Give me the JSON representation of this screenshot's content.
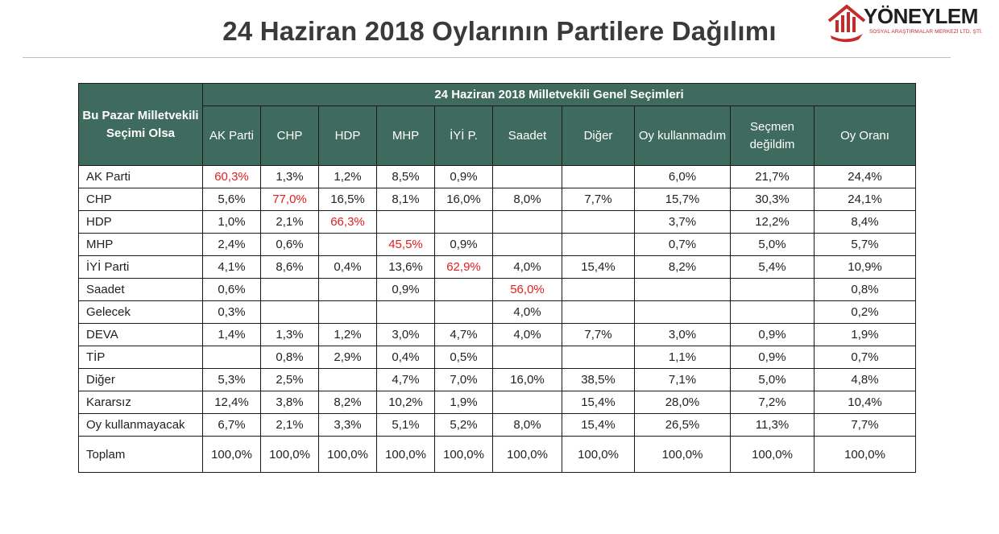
{
  "title": "24 Haziran 2018 Oylarının Partilere Dağılımı",
  "logo": {
    "name": "YÖNEYLEM",
    "subtitle": "SOSYAL ARAŞTIRMALAR MERKEZİ LTD. ŞTİ."
  },
  "colors": {
    "header_bg": "#3f6b5e",
    "highlight": "#e02020"
  },
  "table": {
    "corner_header": "Bu Pazar Milletvekili Seçimi Olsa",
    "group_header": "24 Haziran 2018 Milletvekili Genel Seçimleri",
    "columns": [
      "AK Parti",
      "CHP",
      "HDP",
      "MHP",
      "İYİ P.",
      "Saadet",
      "Diğer",
      "Oy kullanmadım",
      "Seçmen değildim",
      "Oy Oranı"
    ],
    "rows": [
      {
        "label": "AK Parti",
        "values": [
          "60,3%",
          "1,3%",
          "1,2%",
          "8,5%",
          "0,9%",
          "",
          "",
          "6,0%",
          "21,7%",
          "24,4%"
        ],
        "highlight": 0
      },
      {
        "label": "CHP",
        "values": [
          "5,6%",
          "77,0%",
          "16,5%",
          "8,1%",
          "16,0%",
          "8,0%",
          "7,7%",
          "15,7%",
          "30,3%",
          "24,1%"
        ],
        "highlight": 1
      },
      {
        "label": "HDP",
        "values": [
          "1,0%",
          "2,1%",
          "66,3%",
          "",
          "",
          "",
          "",
          "3,7%",
          "12,2%",
          "8,4%"
        ],
        "highlight": 2
      },
      {
        "label": "MHP",
        "values": [
          "2,4%",
          "0,6%",
          "",
          "45,5%",
          "0,9%",
          "",
          "",
          "0,7%",
          "5,0%",
          "5,7%"
        ],
        "highlight": 3
      },
      {
        "label": "İYİ Parti",
        "values": [
          "4,1%",
          "8,6%",
          "0,4%",
          "13,6%",
          "62,9%",
          "4,0%",
          "15,4%",
          "8,2%",
          "5,4%",
          "10,9%"
        ],
        "highlight": 4
      },
      {
        "label": "Saadet",
        "values": [
          "0,6%",
          "",
          "",
          "0,9%",
          "",
          "56,0%",
          "",
          "",
          "",
          "0,8%"
        ],
        "highlight": 5
      },
      {
        "label": "Gelecek",
        "values": [
          "0,3%",
          "",
          "",
          "",
          "",
          "4,0%",
          "",
          "",
          "",
          "0,2%"
        ],
        "highlight": -1
      },
      {
        "label": "DEVA",
        "values": [
          "1,4%",
          "1,3%",
          "1,2%",
          "3,0%",
          "4,7%",
          "4,0%",
          "7,7%",
          "3,0%",
          "0,9%",
          "1,9%"
        ],
        "highlight": -1
      },
      {
        "label": "TİP",
        "values": [
          "",
          "0,8%",
          "2,9%",
          "0,4%",
          "0,5%",
          "",
          "",
          "1,1%",
          "0,9%",
          "0,7%"
        ],
        "highlight": -1
      },
      {
        "label": "Diğer",
        "values": [
          "5,3%",
          "2,5%",
          "",
          "4,7%",
          "7,0%",
          "16,0%",
          "38,5%",
          "7,1%",
          "5,0%",
          "4,8%"
        ],
        "highlight": -1
      },
      {
        "label": "Kararsız",
        "values": [
          "12,4%",
          "3,8%",
          "8,2%",
          "10,2%",
          "1,9%",
          "",
          "15,4%",
          "28,0%",
          "7,2%",
          "10,4%"
        ],
        "highlight": -1
      },
      {
        "label": "Oy kullanmayacak",
        "values": [
          "6,7%",
          "2,1%",
          "3,3%",
          "5,1%",
          "5,2%",
          "8,0%",
          "15,4%",
          "26,5%",
          "11,3%",
          "7,7%"
        ],
        "highlight": -1
      },
      {
        "label": "Toplam",
        "values": [
          "100,0%",
          "100,0%",
          "100,0%",
          "100,0%",
          "100,0%",
          "100,0%",
          "100,0%",
          "100,0%",
          "100,0%",
          "100,0%"
        ],
        "highlight": -1
      }
    ]
  }
}
